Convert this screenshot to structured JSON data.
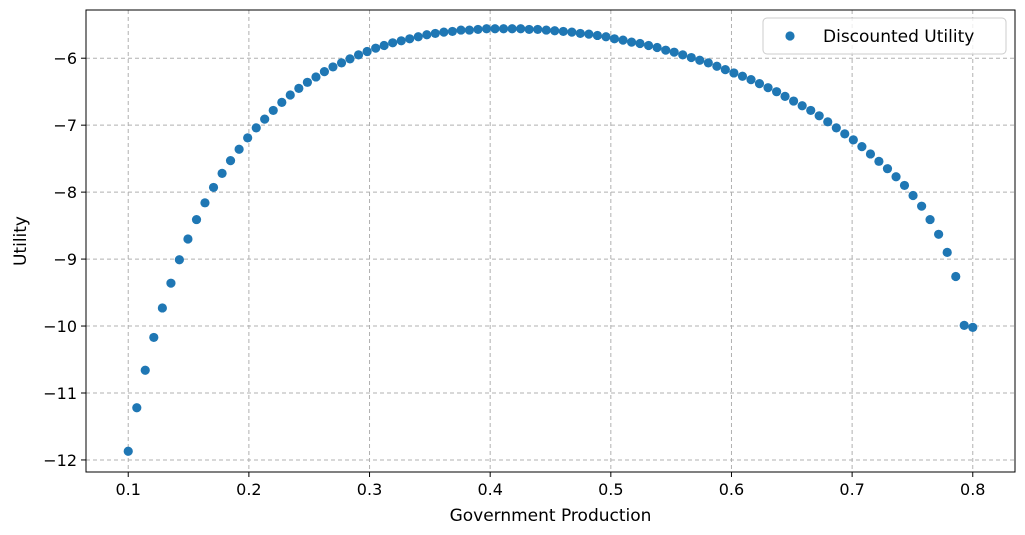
{
  "chart_data": {
    "type": "scatter",
    "xlabel": "Government Production",
    "ylabel": "Utility",
    "xlim": [
      0.065,
      0.835
    ],
    "ylim": [
      -12.18,
      -5.28
    ],
    "xticks": [
      0.1,
      0.2,
      0.3,
      0.4,
      0.5,
      0.6,
      0.7,
      0.8
    ],
    "xtick_labels": [
      "0.1",
      "0.2",
      "0.3",
      "0.4",
      "0.5",
      "0.6",
      "0.7",
      "0.8"
    ],
    "yticks": [
      -12,
      -11,
      -10,
      -9,
      -8,
      -7,
      -6
    ],
    "ytick_labels": [
      "−12",
      "−11",
      "−10",
      "−9",
      "−8",
      "−7",
      "−6"
    ],
    "grid": true,
    "legend_position": "top-right",
    "series": [
      {
        "name": "Discounted Utility",
        "color": "#1f77b4",
        "x": [
          0.1,
          0.1071,
          0.1141,
          0.1212,
          0.1283,
          0.1354,
          0.1424,
          0.1495,
          0.1566,
          0.1636,
          0.1707,
          0.1778,
          0.1848,
          0.1919,
          0.199,
          0.2061,
          0.2131,
          0.2202,
          0.2273,
          0.2343,
          0.2414,
          0.2485,
          0.2556,
          0.2626,
          0.2697,
          0.2768,
          0.2838,
          0.2909,
          0.298,
          0.3051,
          0.3121,
          0.3192,
          0.3263,
          0.3333,
          0.3404,
          0.3475,
          0.3545,
          0.3616,
          0.3687,
          0.3758,
          0.3828,
          0.3899,
          0.397,
          0.404,
          0.4111,
          0.4182,
          0.4253,
          0.4323,
          0.4394,
          0.4465,
          0.4535,
          0.4606,
          0.4677,
          0.4747,
          0.4818,
          0.4889,
          0.496,
          0.503,
          0.5101,
          0.5172,
          0.5242,
          0.5313,
          0.5384,
          0.5455,
          0.5525,
          0.5596,
          0.5667,
          0.5737,
          0.5808,
          0.5879,
          0.5949,
          0.602,
          0.6091,
          0.6162,
          0.6232,
          0.6303,
          0.6374,
          0.6444,
          0.6515,
          0.6586,
          0.6657,
          0.6727,
          0.6798,
          0.6869,
          0.6939,
          0.701,
          0.7081,
          0.7152,
          0.7222,
          0.7293,
          0.7364,
          0.7434,
          0.7505,
          0.7576,
          0.7646,
          0.7717,
          0.7788,
          0.7859,
          0.7929,
          0.8
        ],
        "y": [
          -11.87,
          -11.22,
          -10.66,
          -10.17,
          -9.73,
          -9.36,
          -9.01,
          -8.7,
          -8.41,
          -8.16,
          -7.93,
          -7.72,
          -7.53,
          -7.36,
          -7.19,
          -7.04,
          -6.91,
          -6.78,
          -6.66,
          -6.55,
          -6.45,
          -6.36,
          -6.28,
          -6.2,
          -6.13,
          -6.07,
          -6.01,
          -5.95,
          -5.9,
          -5.85,
          -5.81,
          -5.77,
          -5.74,
          -5.71,
          -5.68,
          -5.65,
          -5.63,
          -5.61,
          -5.6,
          -5.58,
          -5.58,
          -5.57,
          -5.56,
          -5.56,
          -5.56,
          -5.56,
          -5.56,
          -5.57,
          -5.57,
          -5.58,
          -5.59,
          -5.6,
          -5.61,
          -5.63,
          -5.64,
          -5.66,
          -5.68,
          -5.71,
          -5.73,
          -5.76,
          -5.78,
          -5.81,
          -5.84,
          -5.88,
          -5.91,
          -5.95,
          -5.99,
          -6.03,
          -6.07,
          -6.12,
          -6.17,
          -6.22,
          -6.27,
          -6.32,
          -6.38,
          -6.44,
          -6.5,
          -6.57,
          -6.64,
          -6.71,
          -6.78,
          -6.86,
          -6.95,
          -7.04,
          -7.13,
          -7.22,
          -7.32,
          -7.43,
          -7.54,
          -7.65,
          -7.77,
          -7.9,
          -8.05,
          -8.21,
          -8.41,
          -8.63,
          -8.9,
          -9.26,
          -9.99,
          -10.02
        ]
      }
    ]
  }
}
